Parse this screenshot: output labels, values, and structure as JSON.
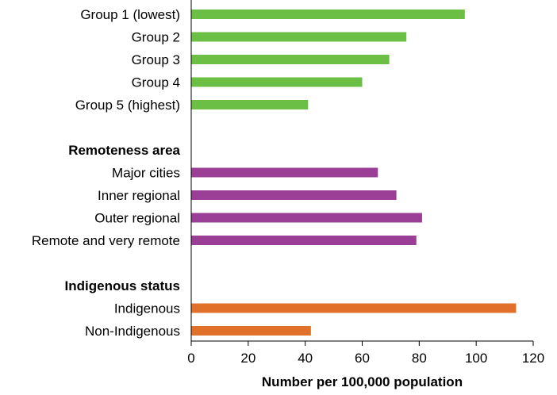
{
  "chart_data": {
    "type": "bar",
    "orientation": "horizontal",
    "xlabel": "Number per 100,000 population",
    "xlim": [
      0,
      120
    ],
    "xticks": [
      0,
      20,
      40,
      60,
      80,
      100,
      120
    ],
    "grid": false,
    "legend": "none",
    "groups": [
      {
        "heading": "",
        "color": "#6cbf45",
        "categories": [
          "Group 1 (lowest)",
          "Group 2",
          "Group 3",
          "Group 4",
          "Group 5 (highest)"
        ],
        "values": [
          96,
          75.5,
          69.5,
          60,
          41
        ]
      },
      {
        "heading": "Remoteness area",
        "color": "#9b3f96",
        "categories": [
          "Major cities",
          "Inner regional",
          "Outer regional",
          "Remote and very remote"
        ],
        "values": [
          65.5,
          72,
          81,
          79
        ]
      },
      {
        "heading": "Indigenous status",
        "color": "#e0702a",
        "categories": [
          "Indigenous",
          "Non-Indigenous"
        ],
        "values": [
          114,
          42
        ]
      }
    ]
  }
}
